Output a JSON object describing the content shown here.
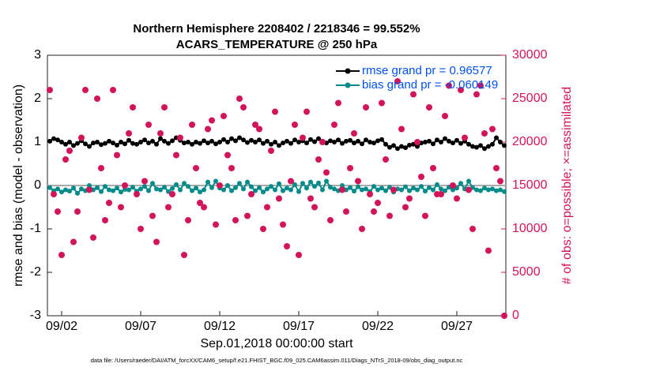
{
  "chart_data": {
    "type": "line",
    "title": "Northern Hemisphere 2208402 / 2218346 = 99.552%",
    "subtitle": "ACARS_TEMPERATURE @ 250 hPa",
    "x_label": "Sep.01,2018 00:00:00 start",
    "y_label": "rmse and bias (model - observation)",
    "y2_label": "# of obs: o=possible; ×=assimilated",
    "footnote": "data file: /Users/raeder/DAI/ATM_forcXX/CAM6_setup/f.e21.FHIST_BGC.f09_025.CAM6assim.011/Diags_NTrS_2018-09/obs_diag_output.nc",
    "xlim": [
      0.1,
      29.1
    ],
    "xticks": [
      {
        "value": 1,
        "label": "09/02"
      },
      {
        "value": 6,
        "label": "09/07"
      },
      {
        "value": 11,
        "label": "09/12"
      },
      {
        "value": 16,
        "label": "09/17"
      },
      {
        "value": 21,
        "label": "09/22"
      },
      {
        "value": 26,
        "label": "09/27"
      }
    ],
    "ylim": [
      -3,
      3
    ],
    "yticks": [
      -3,
      -2,
      -1,
      0,
      1,
      2,
      3
    ],
    "y2lim": [
      0,
      30000
    ],
    "y2ticks": [
      0,
      5000,
      10000,
      15000,
      20000,
      25000,
      30000
    ],
    "zero_line": true,
    "x": [
      0.25,
      0.5,
      0.75,
      1,
      1.25,
      1.5,
      1.75,
      2,
      2.25,
      2.5,
      2.75,
      3,
      3.25,
      3.5,
      3.75,
      4,
      4.25,
      4.5,
      4.75,
      5,
      5.25,
      5.5,
      5.75,
      6,
      6.25,
      6.5,
      6.75,
      7,
      7.25,
      7.5,
      7.75,
      8,
      8.25,
      8.5,
      8.75,
      9,
      9.25,
      9.5,
      9.75,
      10,
      10.25,
      10.5,
      10.75,
      11,
      11.25,
      11.5,
      11.75,
      12,
      12.25,
      12.5,
      12.75,
      13,
      13.25,
      13.5,
      13.75,
      14,
      14.25,
      14.5,
      14.75,
      15,
      15.25,
      15.5,
      15.75,
      16,
      16.25,
      16.5,
      16.75,
      17,
      17.25,
      17.5,
      17.75,
      18,
      18.25,
      18.5,
      18.75,
      19,
      19.25,
      19.5,
      19.75,
      20,
      20.25,
      20.5,
      20.75,
      21,
      21.25,
      21.5,
      21.75,
      22,
      22.25,
      22.5,
      22.75,
      23,
      23.25,
      23.5,
      23.75,
      24,
      24.25,
      24.5,
      24.75,
      25,
      25.25,
      25.5,
      25.75,
      26,
      26.25,
      26.5,
      26.75,
      27,
      27.25,
      27.5,
      27.75,
      28,
      28.25,
      28.5,
      28.75,
      29
    ],
    "series": [
      {
        "name": "rmse grand pr = 0.96577",
        "color": "#000000",
        "values": [
          1.02,
          1.08,
          1.05,
          1.0,
          0.95,
          1.0,
          0.92,
          0.97,
          1.03,
          0.96,
          0.9,
          0.98,
          1.0,
          0.94,
          0.97,
          1.02,
          0.98,
          0.93,
          1.0,
          0.96,
          1.04,
          0.97,
          0.95,
          1.0,
          1.05,
          0.98,
          1.02,
          0.95,
          1.08,
          1.02,
          0.97,
          1.03,
          1.1,
          1.04,
          0.98,
          1.0,
          0.95,
          1.0,
          0.97,
          1.03,
          0.98,
          1.02,
          0.96,
          1.0,
          1.06,
          1.0,
          1.08,
          1.03,
          1.1,
          1.05,
          0.99,
          1.04,
          1.0,
          1.05,
          0.97,
          1.02,
          0.95,
          1.0,
          0.92,
          0.98,
          1.02,
          0.97,
          1.05,
          1.0,
          1.03,
          0.98,
          1.06,
          1.01,
          1.08,
          1.02,
          0.98,
          1.03,
          1.0,
          1.05,
          0.97,
          1.02,
          1.04,
          0.98,
          1.02,
          0.96,
          1.05,
          1.0,
          0.98,
          1.03,
          1.06,
          0.95,
          0.88,
          0.92,
          0.85,
          0.9,
          0.87,
          0.93,
          0.95,
          0.9,
          0.98,
          1.0,
          1.02,
          0.96,
          1.05,
          1.0,
          1.08,
          1.02,
          0.98,
          1.04,
          0.97,
          1.02,
          0.95,
          0.9,
          0.88,
          0.92,
          0.85,
          0.9,
          0.95,
          1.1,
          1.0,
          0.92
        ]
      },
      {
        "name": "bias grand pr = -0.060149",
        "color": "#008b8b",
        "values": [
          -0.05,
          -0.12,
          -0.08,
          -0.15,
          -0.1,
          -0.13,
          -0.06,
          -0.18,
          -0.08,
          -0.12,
          0.0,
          -0.1,
          -0.05,
          -0.14,
          -0.02,
          -0.1,
          -0.12,
          -0.06,
          -0.15,
          -0.09,
          -0.1,
          -0.04,
          -0.13,
          -0.08,
          -0.02,
          -0.12,
          0.05,
          -0.08,
          -0.1,
          -0.04,
          -0.14,
          -0.07,
          0.02,
          -0.1,
          0.05,
          -0.02,
          -0.12,
          -0.06,
          -0.15,
          -0.1,
          0.08,
          -0.05,
          0.1,
          -0.06,
          -0.1,
          0.0,
          -0.12,
          -0.05,
          0.05,
          -0.08,
          0.08,
          -0.03,
          -0.12,
          -0.05,
          -0.15,
          -0.08,
          -0.02,
          -0.1,
          0.04,
          -0.12,
          -0.06,
          -0.1,
          0.02,
          -0.14,
          0.05,
          -0.06,
          0.08,
          -0.02,
          0.06,
          -0.1,
          0.1,
          -0.04,
          -0.08,
          -0.12,
          0.0,
          -0.1,
          -0.05,
          -0.13,
          -0.03,
          -0.1,
          -0.08,
          -0.14,
          -0.02,
          -0.1,
          -0.06,
          -0.12,
          -0.04,
          -0.15,
          -0.08,
          -0.1,
          -0.03,
          -0.12,
          -0.06,
          -0.1,
          -0.02,
          -0.13,
          -0.05,
          -0.1,
          0.02,
          -0.08,
          -0.12,
          -0.04,
          -0.1,
          -0.06,
          0.05,
          -0.08,
          0.1,
          -0.05,
          -0.1,
          -0.12,
          -0.06,
          -0.1,
          -0.08,
          -0.12,
          -0.1,
          -0.14
        ]
      },
      {
        "color": "#d4145a",
        "axis": "y2",
        "marker_only": true,
        "values": [
          26000,
          14000,
          12000,
          7000,
          18000,
          19000,
          8500,
          12000,
          20500,
          26000,
          14500,
          9000,
          25000,
          17000,
          11000,
          13000,
          26000,
          18500,
          12500,
          15000,
          21000,
          24000,
          14000,
          10000,
          15500,
          22000,
          11500,
          8500,
          21000,
          24000,
          12500,
          14000,
          18500,
          20500,
          7000,
          11000,
          22000,
          17000,
          13000,
          12500,
          21500,
          22500,
          10500,
          15000,
          23000,
          18500,
          17000,
          11000,
          25000,
          24000,
          11500,
          14000,
          22000,
          21500,
          10000,
          12500,
          19000,
          23500,
          13500,
          10500,
          8000,
          15500,
          22000,
          7000,
          20500,
          23500,
          13500,
          12500,
          18000,
          20000,
          16500,
          11000,
          22000,
          24500,
          14500,
          12000,
          17000,
          21000,
          15500,
          10000,
          24000,
          14000,
          12000,
          13000,
          24500,
          18000,
          11500,
          14500,
          27000,
          21500,
          12500,
          13500,
          25500,
          20000,
          16000,
          11500,
          24000,
          17000,
          14000,
          14000,
          23000,
          26500,
          15000,
          13500,
          26000,
          20500,
          14500,
          10000,
          25500,
          26500,
          21000,
          7500,
          21500,
          17000,
          15500,
          0
        ]
      }
    ]
  }
}
